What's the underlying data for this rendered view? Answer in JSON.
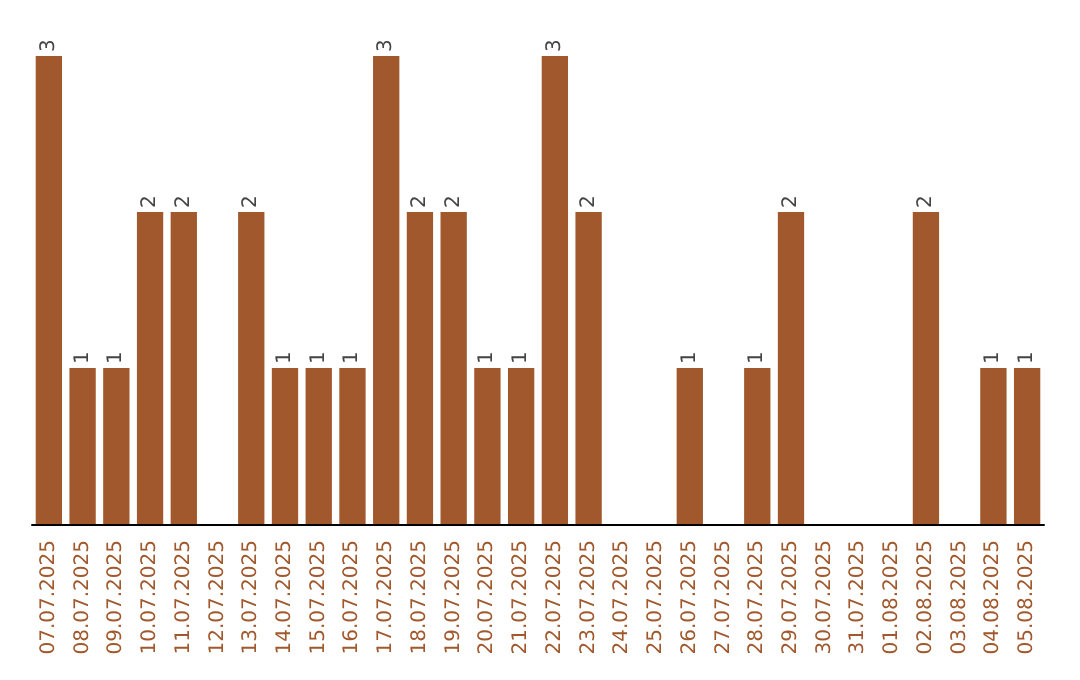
{
  "chart_data": {
    "type": "bar",
    "categories": [
      "07.07.2025",
      "08.07.2025",
      "09.07.2025",
      "10.07.2025",
      "11.07.2025",
      "12.07.2025",
      "13.07.2025",
      "14.07.2025",
      "15.07.2025",
      "16.07.2025",
      "17.07.2025",
      "18.07.2025",
      "19.07.2025",
      "20.07.2025",
      "21.07.2025",
      "22.07.2025",
      "23.07.2025",
      "24.07.2025",
      "25.07.2025",
      "26.07.2025",
      "27.07.2025",
      "28.07.2025",
      "29.07.2025",
      "30.07.2025",
      "31.07.2025",
      "01.08.2025",
      "02.08.2025",
      "03.08.2025",
      "04.08.2025",
      "05.08.2025"
    ],
    "values": [
      3,
      1,
      1,
      2,
      2,
      0,
      2,
      1,
      1,
      1,
      3,
      2,
      2,
      1,
      1,
      3,
      2,
      0,
      0,
      1,
      0,
      1,
      2,
      0,
      0,
      0,
      2,
      0,
      1,
      1
    ],
    "value_labels": [
      "3",
      "1",
      "1",
      "2",
      "2",
      null,
      "2",
      "1",
      "1",
      "1",
      "3",
      "2",
      "2",
      "1",
      "1",
      "3",
      "2",
      null,
      null,
      "1",
      null,
      "1",
      "2",
      null,
      null,
      null,
      "2",
      null,
      "1",
      "1"
    ],
    "color": "#a0582c",
    "grid": false,
    "tick_labels": "x"
  }
}
